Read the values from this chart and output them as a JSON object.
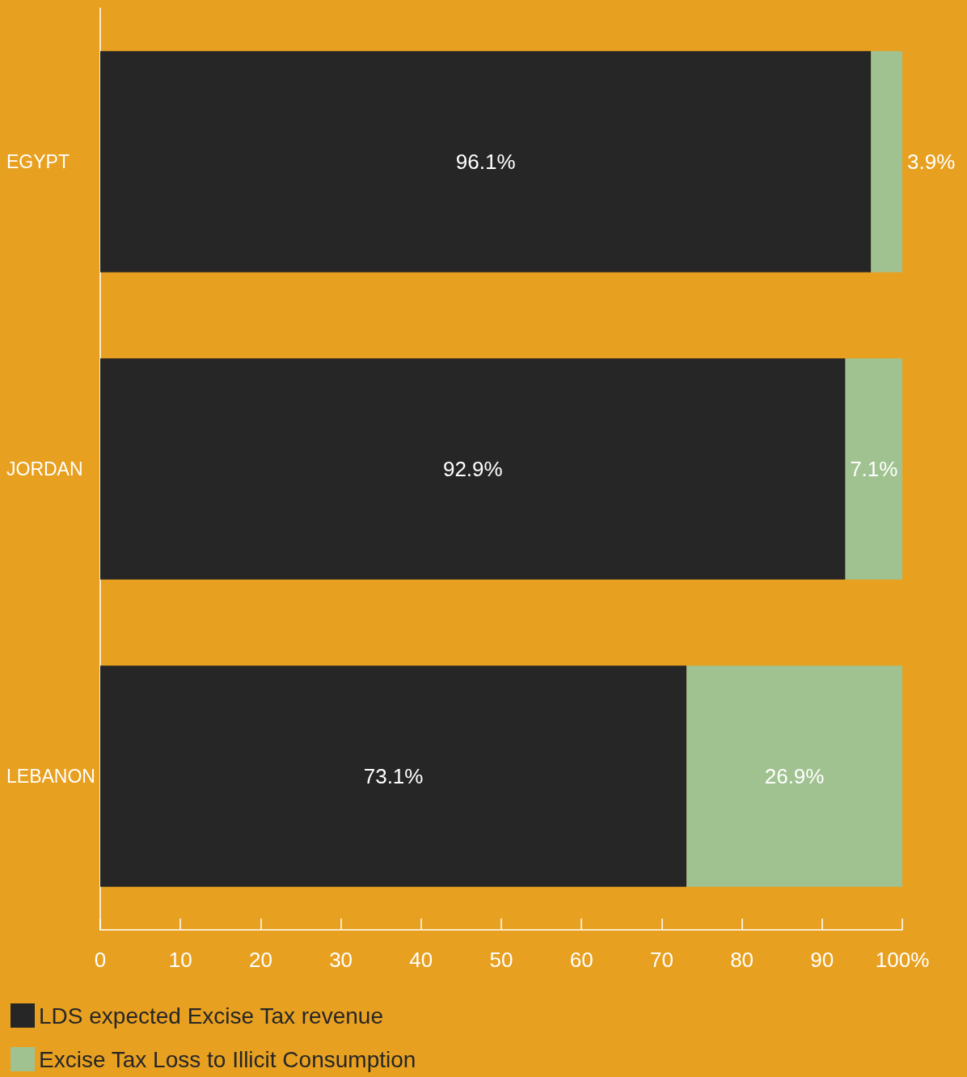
{
  "chart_data": {
    "type": "bar",
    "orientation": "horizontal",
    "stacked": true,
    "categories": [
      "EGYPT",
      "JORDAN",
      "LEBANON"
    ],
    "series": [
      {
        "name": "LDS expected Excise Tax revenue",
        "color": "#262626",
        "values": [
          96.1,
          92.9,
          73.1
        ],
        "value_labels": [
          "96.1%",
          "92.9%",
          "73.1%"
        ]
      },
      {
        "name": "Excise Tax Loss to Illicit Consumption",
        "color": "#a0c290",
        "values": [
          3.9,
          7.1,
          26.9
        ],
        "value_labels": [
          "3.9%",
          "7.1%",
          "26.9%"
        ]
      }
    ],
    "xlim": [
      0,
      100
    ],
    "xticks": [
      0,
      10,
      20,
      30,
      40,
      50,
      60,
      70,
      80,
      90,
      {
        "value": 100,
        "label": "100%"
      }
    ],
    "grid": false,
    "legend": "bottom left"
  }
}
